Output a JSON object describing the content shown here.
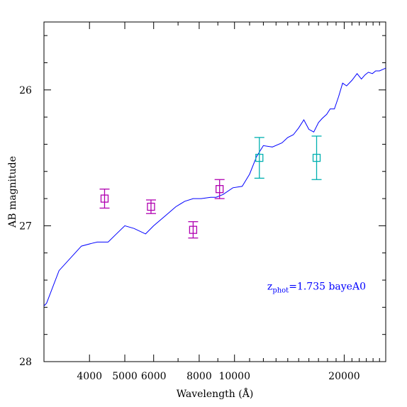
{
  "chart_data": {
    "type": "line",
    "title": "",
    "xlabel": "Wavelength (Å)",
    "ylabel": "AB magnitude",
    "x_scale": "log",
    "y_inverted": true,
    "xlim": [
      3000,
      26000
    ],
    "ylim": [
      28.0,
      25.5
    ],
    "x_ticks": [
      4000,
      5000,
      6000,
      8000,
      10000,
      20000
    ],
    "x_tick_labels": [
      "4000",
      "5000",
      "6000",
      "8000",
      "10000",
      "20000"
    ],
    "y_ticks": [
      26,
      27,
      28
    ],
    "y_tick_labels": [
      "26",
      "27",
      "28"
    ],
    "grid": false,
    "annotation": {
      "text_main": "z",
      "text_sub": "phot",
      "text_rest": "=1.735 bayeA0",
      "x": 12300,
      "y": 27.47,
      "color": "#0000ff"
    },
    "series": [
      {
        "kind": "line",
        "color": "#0000ff",
        "x": [
          3000,
          3050,
          3300,
          3800,
          4050,
          4200,
          4350,
          4500,
          4700,
          5000,
          5300,
          5700,
          6000,
          6500,
          6900,
          7300,
          7700,
          8100,
          8600,
          8900,
          9300,
          9900,
          10500,
          11000,
          11500,
          12000,
          12700,
          13500,
          14000,
          14500,
          15000,
          15500,
          16000,
          16500,
          17000,
          17400,
          17900,
          18300,
          18800,
          19300,
          19800,
          20300,
          21000,
          21700,
          22300,
          22800,
          23300,
          23900,
          24400,
          25000,
          26000
        ],
        "y": [
          27.59,
          27.57,
          27.33,
          27.15,
          27.13,
          27.12,
          27.12,
          27.12,
          27.07,
          27.0,
          27.02,
          27.06,
          27.0,
          26.92,
          26.86,
          26.82,
          26.8,
          26.8,
          26.79,
          26.79,
          26.77,
          26.72,
          26.71,
          26.62,
          26.49,
          26.41,
          26.42,
          26.39,
          26.35,
          26.33,
          26.28,
          26.22,
          26.29,
          26.31,
          26.24,
          26.21,
          26.18,
          26.14,
          26.14,
          26.05,
          25.95,
          25.97,
          25.93,
          25.88,
          25.92,
          25.89,
          25.87,
          25.88,
          25.86,
          25.86,
          25.84
        ]
      },
      {
        "kind": "points",
        "color": "#b000b0",
        "x": [
          4400,
          5900,
          7700,
          9100
        ],
        "y": [
          26.8,
          26.86,
          27.03,
          26.73
        ],
        "err": [
          0.07,
          0.05,
          0.06,
          0.07
        ]
      },
      {
        "kind": "points",
        "color": "#00b0b0",
        "x": [
          11700,
          16800
        ],
        "y": [
          26.5,
          26.5
        ],
        "err": [
          0.15,
          0.16
        ]
      }
    ]
  }
}
